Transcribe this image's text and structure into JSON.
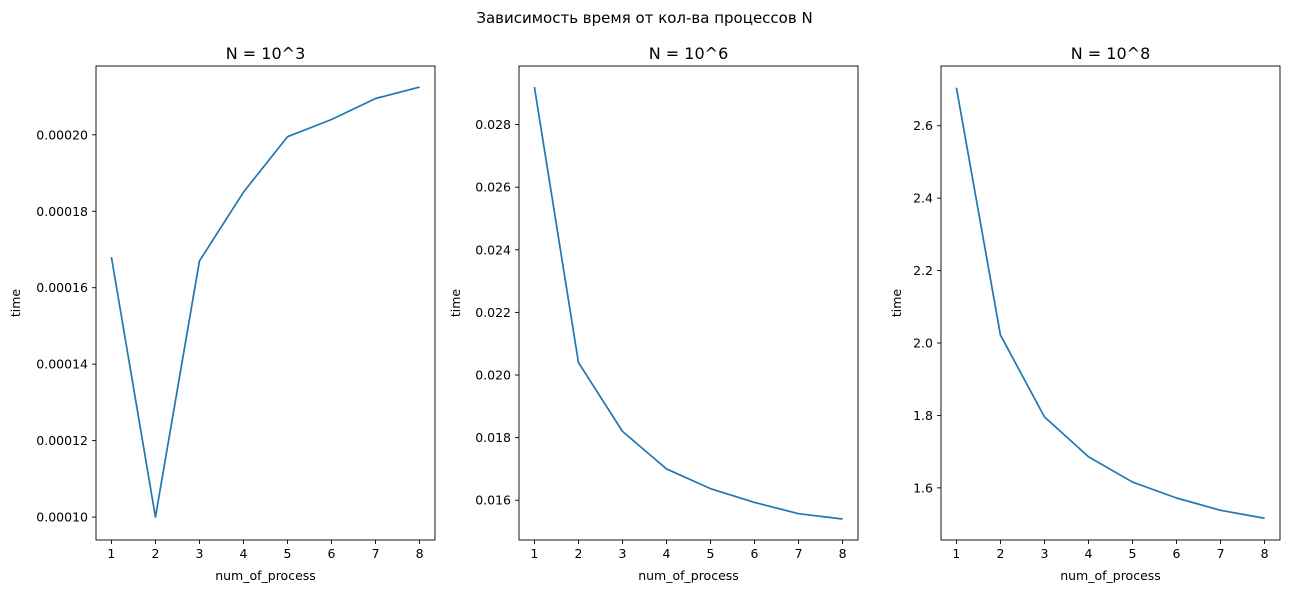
{
  "figure_title": "Зависимость время от кол-ва процессов N",
  "colors": {
    "series": "#1f77b4",
    "axes": "#000000",
    "background": "#ffffff"
  },
  "chart_data": [
    {
      "type": "line",
      "title": "N = 10^3",
      "xlabel": "num_of_process",
      "ylabel": "time",
      "x": [
        1,
        2,
        3,
        4,
        5,
        6,
        7,
        8
      ],
      "series": [
        {
          "values": [
            0.000168,
            0.0001,
            0.000167,
            0.000185,
            0.0001995,
            0.000204,
            0.0002095,
            0.0002125
          ]
        }
      ],
      "xlim": [
        0.65,
        8.35
      ],
      "ylim": [
        9.4e-05,
        0.000218
      ],
      "xticks": [
        1,
        2,
        3,
        4,
        5,
        6,
        7,
        8
      ],
      "xtick_labels": [
        "1",
        "2",
        "3",
        "4",
        "5",
        "6",
        "7",
        "8"
      ],
      "yticks": [
        0.0001,
        0.00012,
        0.00014,
        0.00016,
        0.00018,
        0.0002
      ],
      "ytick_labels": [
        "0.00010",
        "0.00012",
        "0.00014",
        "0.00016",
        "0.00018",
        "0.00020"
      ],
      "grid": false
    },
    {
      "type": "line",
      "title": "N = 10^6",
      "xlabel": "num_of_process",
      "ylabel": "time",
      "x": [
        1,
        2,
        3,
        4,
        5,
        6,
        7,
        8
      ],
      "series": [
        {
          "values": [
            0.0292,
            0.0204,
            0.0182,
            0.017,
            0.01637,
            0.01593,
            0.01557,
            0.0154
          ]
        }
      ],
      "xlim": [
        0.65,
        8.35
      ],
      "ylim": [
        0.01473,
        0.02987
      ],
      "xticks": [
        1,
        2,
        3,
        4,
        5,
        6,
        7,
        8
      ],
      "xtick_labels": [
        "1",
        "2",
        "3",
        "4",
        "5",
        "6",
        "7",
        "8"
      ],
      "yticks": [
        0.016,
        0.018,
        0.02,
        0.022,
        0.024,
        0.026,
        0.028
      ],
      "ytick_labels": [
        "0.016",
        "0.018",
        "0.020",
        "0.022",
        "0.024",
        "0.026",
        "0.028"
      ],
      "grid": false
    },
    {
      "type": "line",
      "title": "N = 10^8",
      "xlabel": "num_of_process",
      "ylabel": "time",
      "x": [
        1,
        2,
        3,
        4,
        5,
        6,
        7,
        8
      ],
      "series": [
        {
          "values": [
            2.705,
            2.022,
            1.796,
            1.686,
            1.616,
            1.572,
            1.538,
            1.516
          ]
        }
      ],
      "xlim": [
        0.65,
        8.35
      ],
      "ylim": [
        1.456,
        2.765
      ],
      "xticks": [
        1,
        2,
        3,
        4,
        5,
        6,
        7,
        8
      ],
      "xtick_labels": [
        "1",
        "2",
        "3",
        "4",
        "5",
        "6",
        "7",
        "8"
      ],
      "yticks": [
        1.6,
        1.8,
        2.0,
        2.2,
        2.4,
        2.6
      ],
      "ytick_labels": [
        "1.6",
        "1.8",
        "2.0",
        "2.2",
        "2.4",
        "2.6"
      ],
      "grid": false
    }
  ]
}
